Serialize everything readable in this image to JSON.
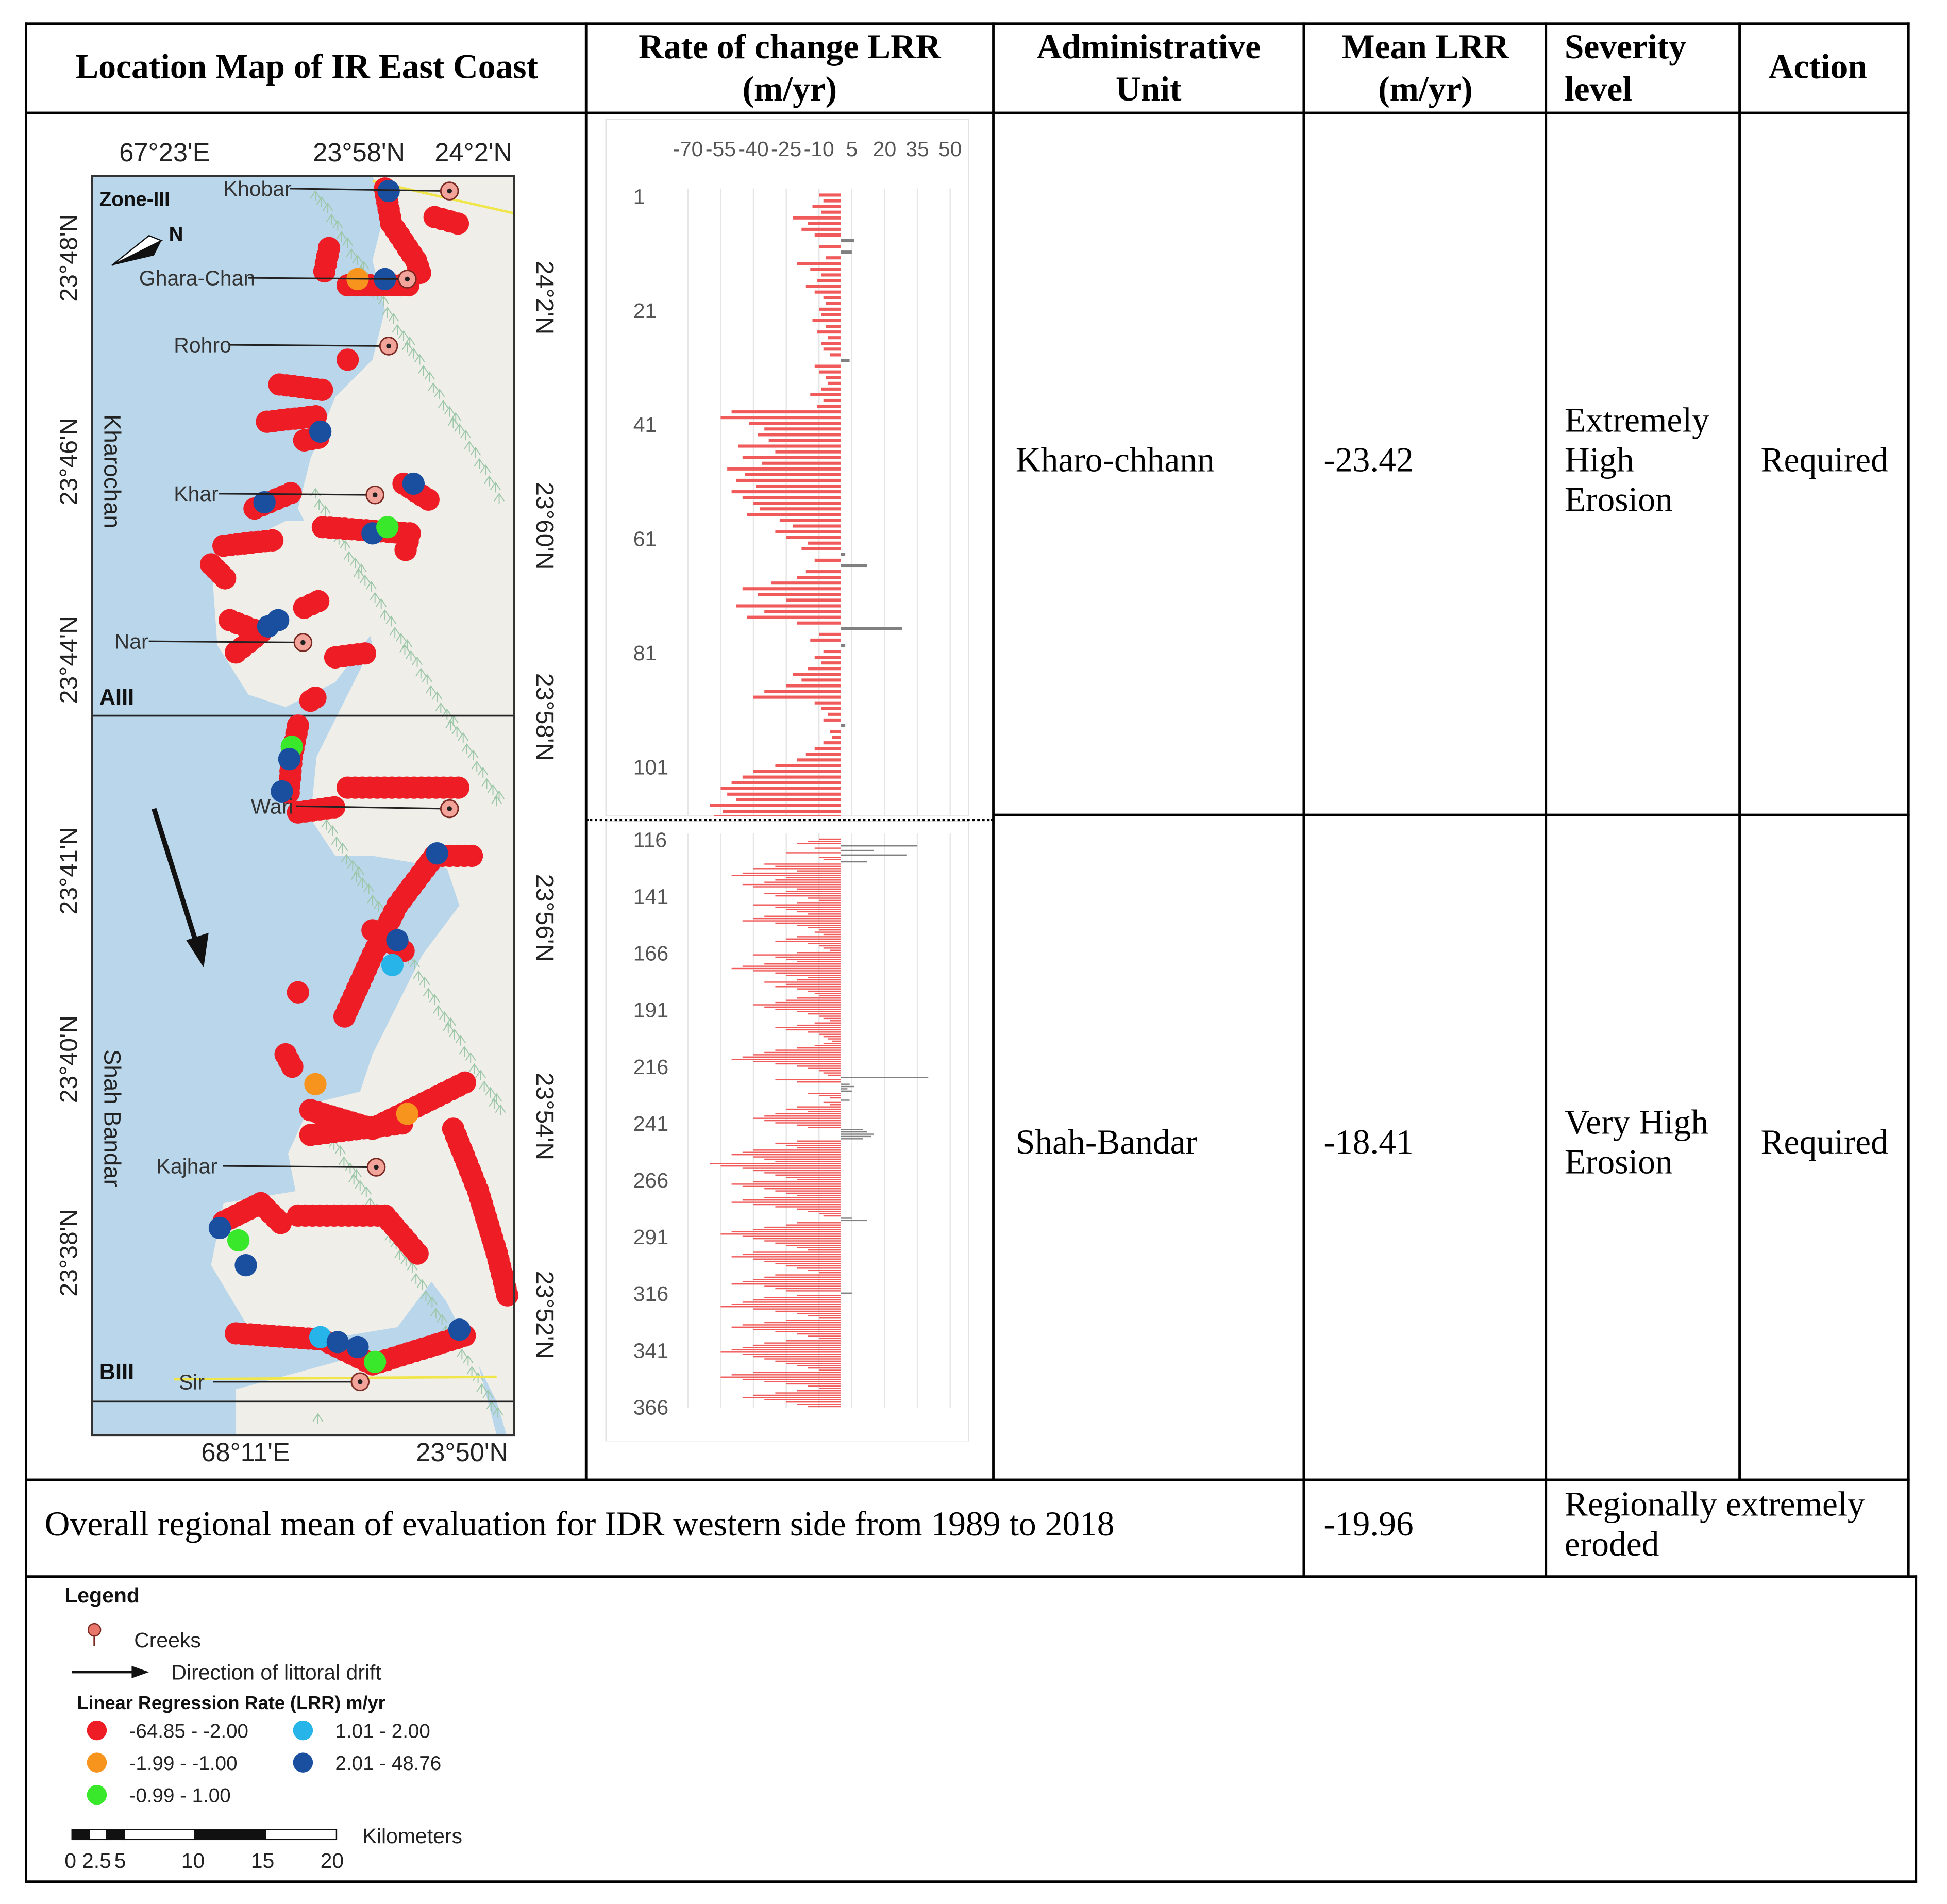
{
  "headers": {
    "location_map": "Location Map of IR East Coast",
    "rate_change_l1": "Rate of change LRR",
    "rate_change_l2": "(m/yr)",
    "admin_l1": "Administrative",
    "admin_l2": "Unit",
    "mean_l1": "Mean LRR",
    "mean_l2": "(m/yr)",
    "severity_l1": "Severity",
    "severity_l2": "level",
    "action": "Action"
  },
  "rows": [
    {
      "unit": "Kharo-chhann",
      "mean": "-23.42",
      "severity": [
        "Extremely",
        "High",
        "Erosion"
      ],
      "action": "Required"
    },
    {
      "unit": "Shah-Bandar",
      "mean": "-18.41",
      "severity": [
        "Very High",
        "Erosion"
      ],
      "action": "Required"
    }
  ],
  "summary": {
    "label": "Overall regional mean of evaluation for IDR western side from 1989 to 2018",
    "mean": "-19.96",
    "severity_l1": "Regionally extremely",
    "severity_l2": "eroded"
  },
  "map": {
    "top_left_lon": "67°23'E",
    "top_mid_lat": "23°58'N",
    "top_right_lat": "24°2'N",
    "bottom_left_lon": "68°11'E",
    "bottom_right_lat": "23°50'N",
    "left_labels": [
      "23°48'N",
      "23°46'N",
      "23°44'N",
      "23°41'N",
      "23°40'N",
      "23°38'N"
    ],
    "right_labels": [
      "24°2'N",
      "23°60'N",
      "23°58'N",
      "23°56'N",
      "23°54'N",
      "23°52'N"
    ],
    "zone_label": "Zone-III",
    "section_a": "AIII",
    "section_b": "BIII",
    "region_upper": "Kharochan",
    "region_lower": "Shah Bandar",
    "north_symbol": "N",
    "creeks": [
      "Khobar",
      "Ghara-Chan",
      "Rohro",
      "Khar",
      "Nar",
      "Wari",
      "Kajhar",
      "Sir"
    ]
  },
  "chart_data": [
    {
      "type": "bar",
      "orientation": "horizontal",
      "title": "Rate of change LRR (m/yr)",
      "x_tick_labels": [
        "-70",
        "-55",
        "-40",
        "-25",
        "-10",
        "5",
        "20",
        "35",
        "50"
      ],
      "xlim": [
        -70,
        55
      ],
      "y_tick_labels": [
        "1",
        "21",
        "41",
        "61",
        "81",
        "101"
      ],
      "transects": [
        1,
        114
      ],
      "values": [
        -10,
        -8,
        -13,
        -9,
        -22,
        -15,
        -18,
        -12,
        6,
        -10,
        5,
        -7,
        -20,
        -14,
        -9,
        -11,
        -16,
        -12,
        -8,
        -7,
        -10,
        -9,
        -13,
        -7,
        -11,
        -6,
        -9,
        -8,
        -5,
        4,
        -12,
        -10,
        -7,
        -6,
        -9,
        -14,
        -8,
        -11,
        -50,
        -55,
        -42,
        -35,
        -38,
        -33,
        -47,
        -30,
        -45,
        -36,
        -52,
        -44,
        -48,
        -39,
        -50,
        -45,
        -40,
        -37,
        -43,
        -28,
        -22,
        -30,
        -25,
        -15,
        -18,
        2,
        -12,
        12,
        -16,
        -20,
        -32,
        -45,
        -38,
        -25,
        -48,
        -35,
        -43,
        -20,
        28,
        -10,
        -14,
        2,
        -8,
        -12,
        -9,
        -15,
        -22,
        -18,
        -25,
        -35,
        -40,
        -12,
        -9,
        -6,
        -8,
        2,
        -5,
        -4,
        -8,
        -12,
        -16,
        -20,
        -30,
        -40,
        -45,
        -50,
        -55,
        -52,
        -48,
        -60,
        -54,
        -58,
        -50,
        -45,
        14,
        -40
      ]
    },
    {
      "type": "bar",
      "orientation": "horizontal",
      "title": "Rate of change LRR (m/yr)",
      "y_tick_labels": [
        "116",
        "141",
        "166",
        "191",
        "216",
        "241",
        "266",
        "291",
        "316",
        "341",
        "366"
      ],
      "transects": [
        116,
        370
      ],
      "xlim": [
        -70,
        55
      ],
      "values": [
        -10,
        -15,
        -20,
        35,
        -12,
        15,
        -25,
        30,
        -10,
        -8,
        12,
        -35,
        -30,
        -40,
        -20,
        -45,
        -50,
        -25,
        -30,
        -35,
        -45,
        -40,
        -20,
        -25,
        -35,
        -30,
        -15,
        -10,
        -20,
        -40,
        -30,
        -25,
        -20,
        -15,
        -35,
        -40,
        -45,
        -30,
        -20,
        -15,
        -10,
        -12,
        -8,
        -20,
        -25,
        -30,
        -15,
        -10,
        -8,
        -5,
        -20,
        -40,
        -30,
        -25,
        -20,
        -35,
        -45,
        -50,
        -40,
        -30,
        -25,
        -15,
        -20,
        -35,
        -25,
        -30,
        -20,
        -15,
        -12,
        -10,
        -20,
        -25,
        -30,
        -40,
        -35,
        -30,
        -20,
        -15,
        -10,
        -8,
        -5,
        -12,
        -20,
        -30,
        -25,
        -15,
        -10,
        -8,
        -6,
        -4,
        -8,
        -12,
        -20,
        -30,
        -35,
        -40,
        -45,
        -50,
        -40,
        -30,
        -20,
        -15,
        -10,
        -8,
        -6,
        40,
        -30,
        -20,
        4,
        6,
        3,
        5,
        -15,
        -10,
        -5,
        4,
        -8,
        -5,
        -20,
        -25,
        -15,
        -30,
        -35,
        -40,
        -35,
        -30,
        -20,
        -15,
        10,
        12,
        15,
        14,
        10,
        -20,
        -30,
        -25,
        -20,
        -40,
        -45,
        -50,
        -40,
        -35,
        -30,
        -60,
        -55,
        -45,
        -40,
        -35,
        -30,
        -25,
        -20,
        -40,
        -50,
        -45,
        -35,
        -30,
        -25,
        -20,
        -35,
        -45,
        -50,
        -40,
        -30,
        -20,
        -15,
        -10,
        -8,
        5,
        12,
        -20,
        -25,
        -35,
        -40,
        -50,
        -55,
        -45,
        -40,
        -35,
        -30,
        -25,
        -20,
        -15,
        -40,
        -45,
        -50,
        -40,
        -35,
        -30,
        -25,
        -20,
        -15,
        -10,
        -30,
        -35,
        -40,
        -45,
        -50,
        -35,
        -30,
        -25,
        5,
        -20,
        -35,
        -40,
        -45,
        -50,
        -55,
        -40,
        -30,
        -20,
        -15,
        -10,
        -25,
        -35,
        -45,
        -50,
        -40,
        -30,
        -20,
        -15,
        -10,
        -25,
        -35,
        -40,
        -45,
        -50,
        -55,
        -45,
        -40,
        -35,
        -30,
        -25,
        -20,
        -15,
        -10,
        -40,
        -50,
        -55,
        -45,
        -35,
        -25,
        -15,
        -10,
        -20,
        -30,
        -40,
        -45,
        -35,
        -25,
        -20,
        -15
      ]
    }
  ],
  "legend": {
    "title": "Legend",
    "creeks": "Creeks",
    "drift": "Direction of littoral drift",
    "lrr_title": "Linear Regression Rate (LRR) m/yr",
    "classes": [
      {
        "label": "-64.85 - -2.00",
        "color": "#ee1c24"
      },
      {
        "label": "-1.99 - -1.00",
        "color": "#f7941d"
      },
      {
        "label": "-0.99 - 1.00",
        "color": "#39e82a"
      },
      {
        "label": "1.01 - 2.00",
        "color": "#27b4e8"
      },
      {
        "label": "2.01 - 48.76",
        "color": "#1a4fa0"
      }
    ],
    "scale_unit": "Kilometers",
    "scale_ticks": [
      "0",
      "2.5",
      "5",
      "10",
      "15",
      "20"
    ]
  },
  "colors": {
    "erosion_bar": "#f05a5a",
    "accretion_bar": "#808080",
    "water": "#b9d6ea",
    "land": "#efeee9"
  }
}
